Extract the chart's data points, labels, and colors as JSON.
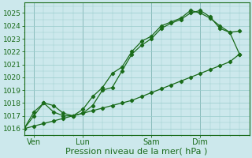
{
  "bg_color": "#cce8ec",
  "grid_color": "#99cccc",
  "line_color": "#1a6b1a",
  "marker_color": "#1a6b1a",
  "xlabel": "Pression niveau de la mer( hPa )",
  "xlabel_fontsize": 8,
  "ylim": [
    1015.5,
    1025.8
  ],
  "yticks": [
    1016,
    1017,
    1018,
    1019,
    1020,
    1021,
    1022,
    1023,
    1024,
    1025
  ],
  "xtick_labels": [
    "Ven",
    "Lun",
    "Sam",
    "Dim"
  ],
  "xtick_positions": [
    0.5,
    3.0,
    6.5,
    9.0
  ],
  "xlim": [
    0,
    11.5
  ],
  "line1_x": [
    0.0,
    0.5,
    1.0,
    1.5,
    2.0,
    2.5,
    3.0,
    3.5,
    4.0,
    4.5,
    5.0,
    5.5,
    6.0,
    6.5,
    7.0,
    7.5,
    8.0,
    8.5,
    9.0,
    9.5,
    10.0,
    10.5,
    11.0
  ],
  "line1_y": [
    1016.0,
    1016.2,
    1016.4,
    1016.6,
    1016.8,
    1017.0,
    1017.2,
    1017.4,
    1017.6,
    1017.8,
    1018.0,
    1018.2,
    1018.5,
    1018.8,
    1019.1,
    1019.4,
    1019.7,
    1020.0,
    1020.3,
    1020.6,
    1020.9,
    1021.2,
    1021.8
  ],
  "line2_x": [
    0.0,
    0.5,
    1.0,
    1.5,
    2.0,
    2.5,
    3.0,
    3.5,
    4.0,
    4.5,
    5.0,
    5.5,
    6.0,
    6.5,
    7.0,
    7.5,
    8.0,
    8.5,
    9.0,
    9.5,
    10.0,
    10.5,
    11.0
  ],
  "line2_y": [
    1016.0,
    1017.0,
    1018.0,
    1017.8,
    1017.2,
    1017.0,
    1017.5,
    1018.5,
    1019.2,
    1020.3,
    1020.8,
    1022.0,
    1022.8,
    1023.2,
    1024.0,
    1024.3,
    1024.6,
    1025.2,
    1025.0,
    1024.6,
    1024.0,
    1023.5,
    1023.6
  ],
  "line3_x": [
    0.0,
    0.5,
    1.0,
    1.5,
    2.0,
    2.5,
    3.0,
    3.5,
    4.0,
    4.5,
    5.0,
    5.5,
    6.0,
    6.5,
    7.0,
    7.5,
    8.0,
    8.5,
    9.0,
    9.5,
    10.0,
    10.5,
    11.0
  ],
  "line3_y": [
    1016.0,
    1017.3,
    1018.0,
    1017.3,
    1017.0,
    1017.0,
    1017.2,
    1017.8,
    1019.0,
    1019.2,
    1020.5,
    1021.8,
    1022.5,
    1023.0,
    1023.8,
    1024.2,
    1024.5,
    1025.0,
    1025.2,
    1024.7,
    1023.8,
    1023.5,
    1021.8
  ],
  "vline_positions": [
    0.5,
    3.0,
    6.5,
    9.0
  ],
  "vline_color": "#5b8a8a"
}
